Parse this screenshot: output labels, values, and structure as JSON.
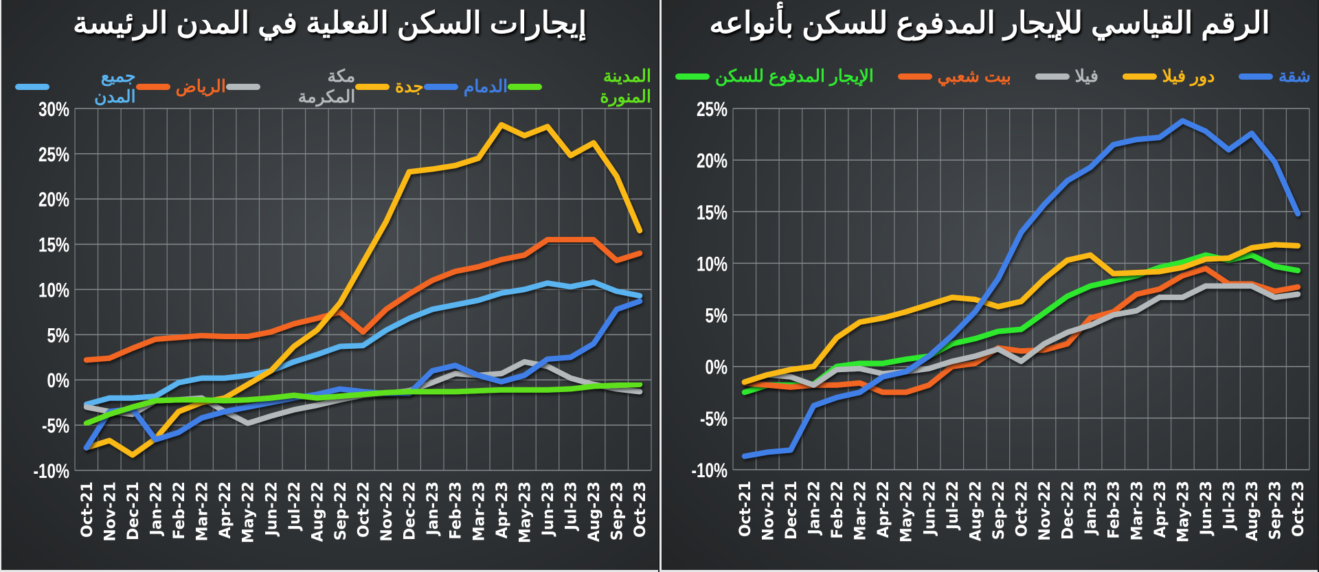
{
  "chart_data": [
    {
      "type": "line",
      "title": "إيجارات السكن الفعلية في المدن الرئيسة",
      "categories": [
        "Oct-21",
        "Nov-21",
        "Dec-21",
        "Jan-22",
        "Feb-22",
        "Mar-22",
        "Apr-22",
        "May-22",
        "Jun-22",
        "Jul-22",
        "Aug-22",
        "Sep-22",
        "Oct-22",
        "Nov-22",
        "Dec-22",
        "Jan-23",
        "Feb-23",
        "Mar-23",
        "Apr-23",
        "May-23",
        "Jun-23",
        "Jul-23",
        "Aug-23",
        "Sep-23",
        "Oct-23"
      ],
      "ylim": [
        -10,
        30
      ],
      "yticks": [
        "30%",
        "25%",
        "20%",
        "15%",
        "10%",
        "5%",
        "0%",
        "-5%",
        "-10%"
      ],
      "ytick_values": [
        30,
        25,
        20,
        15,
        10,
        5,
        0,
        -5,
        -10
      ],
      "grid": true,
      "legend_placement": "top",
      "series": [
        {
          "name": "المدينة المنورة",
          "color": "#5fe01c",
          "values": [
            -4.8,
            -3.8,
            -3.0,
            -2.3,
            -2.2,
            -2.2,
            -2.3,
            -2.2,
            -2.0,
            -1.7,
            -2.0,
            -1.8,
            -1.6,
            -1.4,
            -1.3,
            -1.3,
            -1.3,
            -1.2,
            -1.1,
            -1.1,
            -1.1,
            -1.0,
            -0.7,
            -0.6,
            -0.5
          ]
        },
        {
          "name": "الدمام",
          "color": "#3f7fe8",
          "values": [
            -7.5,
            -3.5,
            -3.2,
            -6.6,
            -5.8,
            -4.2,
            -3.5,
            -3.0,
            -2.5,
            -2.0,
            -1.6,
            -1.0,
            -1.3,
            -1.5,
            -1.5,
            1.0,
            1.6,
            0.5,
            -0.2,
            0.5,
            2.3,
            2.5,
            4.0,
            7.8,
            8.7
          ]
        },
        {
          "name": "جدة",
          "color": "#fbb917",
          "values": [
            -7.5,
            -6.7,
            -8.3,
            -6.5,
            -3.5,
            -2.5,
            -2.0,
            -0.5,
            1.0,
            3.7,
            5.5,
            8.5,
            13.0,
            17.5,
            23.0,
            23.3,
            23.7,
            24.5,
            28.2,
            27.0,
            28.0,
            24.8,
            26.2,
            22.5,
            16.5
          ]
        },
        {
          "name": "مكة المكرمة",
          "color": "#b4b9bb",
          "values": [
            -3.0,
            -3.5,
            -3.8,
            -2.3,
            -2.2,
            -2.0,
            -3.5,
            -4.8,
            -4.0,
            -3.3,
            -2.8,
            -2.2,
            -1.7,
            -1.5,
            -1.2,
            -0.3,
            0.7,
            0.5,
            0.7,
            2.0,
            1.5,
            0.2,
            -0.5,
            -1.0,
            -1.3
          ]
        },
        {
          "name": "الرياض",
          "color": "#f26522",
          "values": [
            2.2,
            2.4,
            3.5,
            4.5,
            4.7,
            4.9,
            4.8,
            4.8,
            5.3,
            6.2,
            6.8,
            7.5,
            5.3,
            7.8,
            9.5,
            11.0,
            12.0,
            12.5,
            13.3,
            13.8,
            15.5,
            15.5,
            15.5,
            13.2,
            14.0
          ]
        },
        {
          "name": "جميع المدن",
          "color": "#5ab4f0",
          "values": [
            -2.7,
            -2.0,
            -2.0,
            -1.8,
            -0.3,
            0.2,
            0.2,
            0.5,
            1.0,
            2.0,
            2.8,
            3.7,
            3.8,
            5.5,
            6.8,
            7.8,
            8.3,
            8.8,
            9.6,
            10.0,
            10.7,
            10.3,
            10.8,
            9.8,
            9.3
          ]
        }
      ]
    },
    {
      "type": "line",
      "title": "الرقم القياسي للإيجار المدفوع للسكن بأنواعه",
      "categories": [
        "Oct-21",
        "Nov-21",
        "Dec-21",
        "Jan-22",
        "Feb-22",
        "Mar-22",
        "Apr-22",
        "May-22",
        "Jun-22",
        "Jul-22",
        "Aug-22",
        "Sep-22",
        "Oct-22",
        "Nov-22",
        "Dec-22",
        "Jan-23",
        "Feb-23",
        "Mar-23",
        "Apr-23",
        "May-23",
        "Jun-23",
        "Jul-23",
        "Aug-23",
        "Sep-23",
        "Oct-23"
      ],
      "ylim": [
        -10,
        25
      ],
      "yticks": [
        "25%",
        "20%",
        "15%",
        "10%",
        "5%",
        "0%",
        "-5%",
        "-10%"
      ],
      "ytick_values": [
        25,
        20,
        15,
        10,
        5,
        0,
        -5,
        -10
      ],
      "grid": true,
      "legend_placement": "top",
      "series": [
        {
          "name": "شقة",
          "color": "#3f7fe8",
          "values": [
            -8.7,
            -8.3,
            -8.1,
            -3.8,
            -3.0,
            -2.5,
            -1.0,
            -0.5,
            1.0,
            3.0,
            5.3,
            8.5,
            13.0,
            15.7,
            18.0,
            19.3,
            21.5,
            22.0,
            22.2,
            23.8,
            22.8,
            21.0,
            22.6,
            19.8,
            14.8
          ]
        },
        {
          "name": "دور فيلا",
          "color": "#fbb917",
          "values": [
            -1.5,
            -0.8,
            -0.3,
            0.0,
            2.8,
            4.3,
            4.7,
            5.3,
            6.0,
            6.7,
            6.5,
            5.8,
            6.3,
            8.5,
            10.3,
            10.8,
            9.0,
            9.1,
            9.2,
            9.6,
            10.4,
            10.5,
            11.5,
            11.8,
            11.7
          ]
        },
        {
          "name": "فيلا",
          "color": "#b4b9bb",
          "values": [
            -1.5,
            -0.8,
            -1.0,
            -1.8,
            -0.3,
            -0.2,
            -0.7,
            -0.5,
            -0.2,
            0.5,
            1.0,
            1.7,
            0.5,
            2.2,
            3.3,
            4.0,
            5.0,
            5.4,
            6.7,
            6.7,
            7.8,
            7.8,
            7.8,
            6.7,
            7.0
          ]
        },
        {
          "name": "بيت شعبي",
          "color": "#f26522",
          "values": [
            -1.6,
            -1.8,
            -2.0,
            -1.8,
            -1.8,
            -1.6,
            -2.5,
            -2.5,
            -1.8,
            0.0,
            0.3,
            1.8,
            1.5,
            1.6,
            2.2,
            4.7,
            5.3,
            7.0,
            7.5,
            8.8,
            9.5,
            8.0,
            8.0,
            7.3,
            7.7
          ]
        },
        {
          "name": "الإيجار المدفوع للسكن",
          "color": "#2fe82f",
          "values": [
            -2.5,
            -1.8,
            -1.8,
            -1.7,
            0.0,
            0.3,
            0.3,
            0.7,
            1.0,
            2.2,
            2.7,
            3.4,
            3.6,
            5.2,
            6.8,
            7.8,
            8.3,
            8.8,
            9.6,
            10.1,
            10.8,
            10.3,
            10.8,
            9.7,
            9.3
          ]
        }
      ]
    }
  ]
}
